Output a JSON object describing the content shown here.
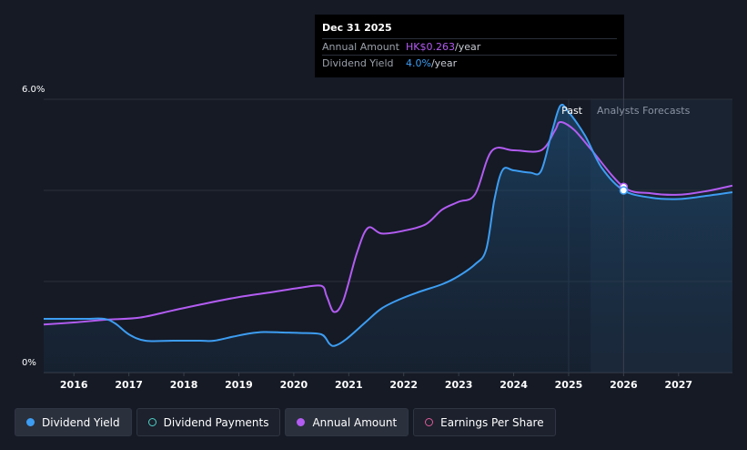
{
  "tooltip": {
    "date": "Dec 31 2025",
    "annual_amount_label": "Annual Amount",
    "annual_amount_value": "HK$0.263",
    "annual_amount_suffix": "/year",
    "dividend_yield_label": "Dividend Yield",
    "dividend_yield_value": "4.0%",
    "dividend_yield_suffix": "/year"
  },
  "legend": [
    {
      "label": "Dividend Yield",
      "color": "#3d9df2",
      "style": "filled"
    },
    {
      "label": "Dividend Payments",
      "color": "#4fd1c5",
      "style": "outline"
    },
    {
      "label": "Annual Amount",
      "color": "#b35cf2",
      "style": "filled"
    },
    {
      "label": "Earnings Per Share",
      "color": "#e05a9a",
      "style": "outline"
    }
  ],
  "chart_data": {
    "type": "line",
    "y_axis_labels": [
      "6.0%",
      "0%"
    ],
    "ylim": [
      0,
      6.0
    ],
    "xlim": [
      2015.45,
      2027.98
    ],
    "x_tick_labels": [
      "2016",
      "2017",
      "2018",
      "2019",
      "2020",
      "2021",
      "2022",
      "2023",
      "2024",
      "2025",
      "2026",
      "2027"
    ],
    "past_label": "Past",
    "forecast_label": "Analysts Forecasts",
    "forecast_start": 2025.4,
    "highlight_x": 2026.0,
    "grid": true,
    "series": [
      {
        "name": "Dividend Yield",
        "color": "#3d9df2",
        "unit": "%",
        "points": [
          [
            2015.45,
            1.18
          ],
          [
            2015.8,
            1.18
          ],
          [
            2016.2,
            1.18
          ],
          [
            2016.55,
            1.18
          ],
          [
            2016.75,
            1.08
          ],
          [
            2017.0,
            0.84
          ],
          [
            2017.3,
            0.7
          ],
          [
            2017.8,
            0.7
          ],
          [
            2018.3,
            0.7
          ],
          [
            2018.55,
            0.7
          ],
          [
            2018.9,
            0.79
          ],
          [
            2019.2,
            0.86
          ],
          [
            2019.45,
            0.89
          ],
          [
            2019.8,
            0.88
          ],
          [
            2020.1,
            0.87
          ],
          [
            2020.5,
            0.84
          ],
          [
            2020.65,
            0.63
          ],
          [
            2020.75,
            0.59
          ],
          [
            2020.95,
            0.73
          ],
          [
            2021.3,
            1.1
          ],
          [
            2021.6,
            1.41
          ],
          [
            2021.95,
            1.62
          ],
          [
            2022.3,
            1.78
          ],
          [
            2022.7,
            1.94
          ],
          [
            2023.0,
            2.12
          ],
          [
            2023.3,
            2.38
          ],
          [
            2023.5,
            2.7
          ],
          [
            2023.65,
            3.8
          ],
          [
            2023.8,
            4.45
          ],
          [
            2024.0,
            4.44
          ],
          [
            2024.3,
            4.39
          ],
          [
            2024.5,
            4.43
          ],
          [
            2024.7,
            5.3
          ],
          [
            2024.85,
            5.86
          ],
          [
            2025.0,
            5.72
          ],
          [
            2025.3,
            5.2
          ],
          [
            2025.6,
            4.5
          ],
          [
            2026.0,
            4.0
          ],
          [
            2026.5,
            3.84
          ],
          [
            2027.0,
            3.81
          ],
          [
            2027.5,
            3.88
          ],
          [
            2027.98,
            3.96
          ]
        ]
      },
      {
        "name": "Annual Amount",
        "color": "#b35cf2",
        "unit": "HK$",
        "points": [
          [
            2015.45,
            0.068
          ],
          [
            2016.0,
            0.071
          ],
          [
            2016.6,
            0.075
          ],
          [
            2017.2,
            0.078
          ],
          [
            2017.8,
            0.088
          ],
          [
            2018.4,
            0.098
          ],
          [
            2019.0,
            0.107
          ],
          [
            2019.6,
            0.114
          ],
          [
            2020.1,
            0.12
          ],
          [
            2020.5,
            0.123
          ],
          [
            2020.6,
            0.108
          ],
          [
            2020.73,
            0.086
          ],
          [
            2020.9,
            0.102
          ],
          [
            2021.15,
            0.17
          ],
          [
            2021.35,
            0.205
          ],
          [
            2021.6,
            0.197
          ],
          [
            2022.0,
            0.201
          ],
          [
            2022.4,
            0.21
          ],
          [
            2022.7,
            0.231
          ],
          [
            2023.0,
            0.242
          ],
          [
            2023.3,
            0.253
          ],
          [
            2023.6,
            0.314
          ],
          [
            2024.0,
            0.315
          ],
          [
            2024.5,
            0.315
          ],
          [
            2024.75,
            0.343
          ],
          [
            2024.85,
            0.355
          ],
          [
            2025.1,
            0.344
          ],
          [
            2025.4,
            0.317
          ],
          [
            2026.0,
            0.263
          ],
          [
            2026.5,
            0.254
          ],
          [
            2027.0,
            0.252
          ],
          [
            2027.5,
            0.257
          ],
          [
            2027.98,
            0.265
          ]
        ]
      }
    ]
  }
}
